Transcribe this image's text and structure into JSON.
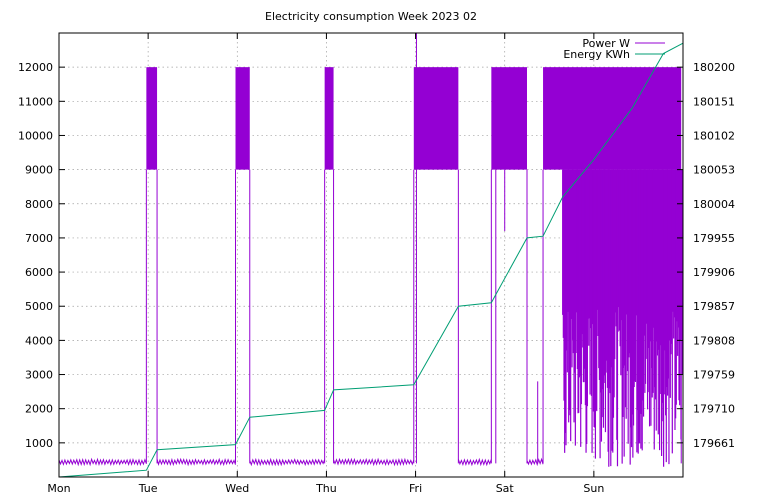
{
  "chart_data": {
    "type": "line",
    "title": "Electricity consumption Week 2023 02",
    "x": {
      "min": 0,
      "max": 7,
      "tick_labels": [
        "Mon",
        "Tue",
        "Wed",
        "Thu",
        "Fri",
        "Sat",
        "Sun"
      ]
    },
    "y_left": {
      "min": 0,
      "max": 13000,
      "ticks": [
        1000,
        2000,
        3000,
        4000,
        5000,
        6000,
        7000,
        8000,
        9000,
        10000,
        11000,
        12000
      ],
      "tick_labels": [
        "1000",
        "2000",
        "3000",
        "4000",
        "5000",
        "6000",
        "7000",
        "8000",
        "9000",
        "10000",
        "11000",
        "12000"
      ]
    },
    "y_right": {
      "tick_labels": [
        "179661",
        "179710",
        "179759",
        "179808",
        "179857",
        "179906",
        "179955",
        "180004",
        "180053",
        "180102",
        "180151",
        "180200"
      ]
    },
    "grid": true,
    "legend_position": "top-right",
    "series": [
      {
        "name": "Power W",
        "color": "#9400d3",
        "baseline": 400,
        "high_plateau_from": 9000,
        "high_plateau_to": 12000,
        "blocks": [
          [
            0.98,
            1.1
          ],
          [
            1.98,
            2.14
          ],
          [
            2.98,
            3.08
          ],
          [
            3.98,
            4.48
          ],
          [
            4.85,
            5.25
          ],
          [
            5.43,
            6.98
          ]
        ],
        "noisy_from": 5.65,
        "noisy_low_min": 300,
        "noisy_low_max": 5000
      },
      {
        "name": "Energy KWh",
        "color": "#009e73",
        "points": [
          [
            0.0,
            0
          ],
          [
            0.98,
            200
          ],
          [
            1.1,
            800
          ],
          [
            1.98,
            950
          ],
          [
            2.14,
            1750
          ],
          [
            2.98,
            1950
          ],
          [
            3.08,
            2550
          ],
          [
            3.98,
            2700
          ],
          [
            4.48,
            5000
          ],
          [
            4.85,
            5100
          ],
          [
            5.25,
            7000
          ],
          [
            5.43,
            7050
          ],
          [
            5.65,
            8200
          ],
          [
            6.0,
            9300
          ],
          [
            6.43,
            10800
          ],
          [
            6.78,
            12400
          ],
          [
            7.0,
            12700
          ]
        ]
      }
    ]
  }
}
